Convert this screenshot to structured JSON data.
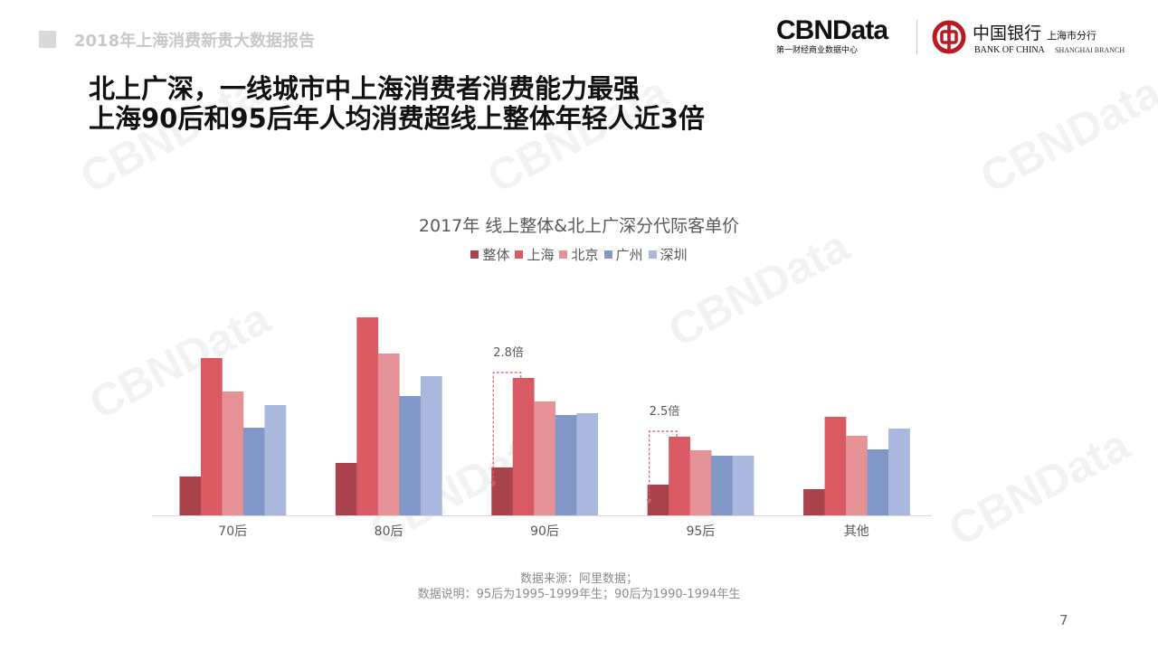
{
  "header": {
    "report_title": "2018年上海消费新贵大数据报告"
  },
  "logos": {
    "cbn": "CBNData",
    "cbn_sub": "第一财经商业数据中心",
    "boc_cn": "中国银行",
    "boc_branch": "上海市分行",
    "boc_en": "BANK OF CHINA",
    "boc_branch_en": "SHANGHAI BRANCH",
    "watermark": "CBNData"
  },
  "headline": {
    "line1": "北上广深，一线城市中上海消费者消费能力最强",
    "line2": "上海90后和95后年人均消费超线上整体年轻人近3倍"
  },
  "chart_data": {
    "type": "bar",
    "title": "2017年 线上整体&北上广深分代际客单价",
    "categories": [
      "70后",
      "80后",
      "90后",
      "95后",
      "其他"
    ],
    "series": [
      {
        "name": "整体",
        "color": "#a8434b",
        "values": [
          43,
          58,
          53,
          34,
          29
        ]
      },
      {
        "name": "上海",
        "color": "#d95a62",
        "values": [
          174,
          219,
          152,
          87,
          109
        ]
      },
      {
        "name": "北京",
        "color": "#e59196",
        "values": [
          137,
          179,
          126,
          72,
          88
        ]
      },
      {
        "name": "广州",
        "color": "#8097c8",
        "values": [
          97,
          132,
          111,
          66,
          73
        ]
      },
      {
        "name": "深圳",
        "color": "#a9b8dc",
        "values": [
          122,
          154,
          113,
          66,
          96
        ]
      }
    ],
    "ylim": [
      0,
      220
    ],
    "y_axis_shown": false,
    "grid": false,
    "legend_position": "top-center",
    "annotations": [
      {
        "category": "90后",
        "text": "2.8倍"
      },
      {
        "category": "95后",
        "text": "2.5倍"
      }
    ]
  },
  "footer": {
    "source": "数据来源：阿里数据；",
    "note": "数据说明：95后为1995-1999年生；90后为1990-1994年生",
    "page": "7"
  }
}
